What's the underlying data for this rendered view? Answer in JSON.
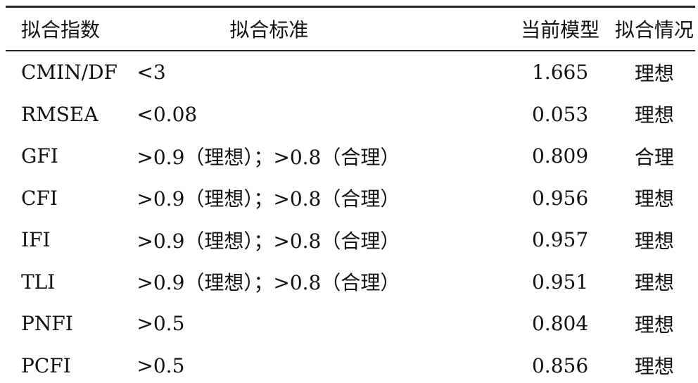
{
  "table": {
    "header": [
      "拟合指数",
      "拟合标准",
      "当前模型",
      "拟合情况"
    ],
    "rows": [
      [
        "CMIN/DF",
        "<3",
        "1.665",
        "理想"
      ],
      [
        "RMSEA",
        "<0.08",
        "0.053",
        "理想"
      ],
      [
        "GFI",
        ">0.9（理想）；>0.8（合理）",
        "0.809",
        "合理"
      ],
      [
        "CFI",
        ">0.9（理想）；>0.8（合理）",
        "0.956",
        "理想"
      ],
      [
        "IFI",
        ">0.9（理想）；>0.8（合理）",
        "0.957",
        "理想"
      ],
      [
        "TLI",
        ">0.9（理想）；>0.8（合理）",
        "0.951",
        "理想"
      ],
      [
        "PNFI",
        ">0.5",
        "0.804",
        "理想"
      ],
      [
        "PCFI",
        ">0.5",
        "0.856",
        "理想"
      ]
    ]
  }
}
